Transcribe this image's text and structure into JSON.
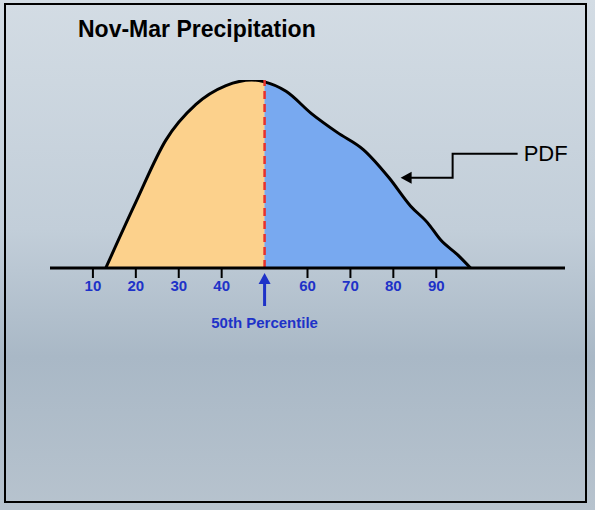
{
  "chart_data": {
    "type": "area",
    "title": "Nov-Mar Precipitation",
    "x": [
      13,
      20,
      27,
      34,
      41,
      47,
      50,
      55,
      61,
      67,
      73,
      79,
      84,
      88,
      91,
      95,
      98
    ],
    "series": [
      {
        "type": "area",
        "color": "#fcd18c",
        "values": [
          0,
          35,
          68,
          87,
          97,
          100,
          99,
          null,
          null,
          null,
          null,
          null,
          null,
          null,
          null,
          null,
          null
        ]
      },
      {
        "type": "area",
        "color": "#78a9f0",
        "values": [
          null,
          null,
          null,
          null,
          null,
          null,
          99,
          94,
          82,
          72,
          63,
          48,
          33,
          24,
          15,
          7,
          0
        ]
      }
    ],
    "xlim": [
      0,
      120
    ],
    "xticks": [
      10,
      20,
      30,
      40,
      60,
      70,
      80,
      90
    ],
    "ylim": [
      0,
      100
    ],
    "tick_labels": "x",
    "annotations": [
      {
        "text": "50th Percentile",
        "x": 50,
        "color": "#e8312c",
        "line_style": "dashed"
      },
      {
        "text": "PDF",
        "x": 81,
        "y": 48
      }
    ]
  }
}
